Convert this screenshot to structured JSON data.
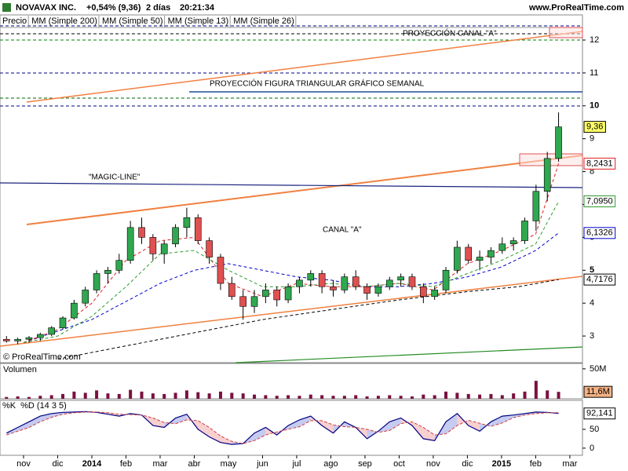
{
  "header": {
    "symbol": "NOVAVAX INC.",
    "change": "+0,54% (9,36)",
    "period": "2 días",
    "time": "20:21:34",
    "site": "www.ProRealTime.com"
  },
  "chart_data": [
    {
      "type": "candlestick",
      "xlim": [
        -0.69,
        16.37
      ],
      "ylim": [
        2.19,
        12.43
      ],
      "yticks": [
        3,
        4,
        5,
        6,
        7,
        8,
        9,
        10,
        11,
        12
      ],
      "xticks": [
        {
          "value": 0,
          "label": "nov"
        },
        {
          "value": 1,
          "label": "dic"
        },
        {
          "value": 2,
          "label": "2014"
        },
        {
          "value": 3,
          "label": "feb"
        },
        {
          "value": 4,
          "label": "mar"
        },
        {
          "value": 5,
          "label": "abr"
        },
        {
          "value": 6,
          "label": "may"
        },
        {
          "value": 7,
          "label": "jun"
        },
        {
          "value": 8,
          "label": "jul"
        },
        {
          "value": 9,
          "label": "ago"
        },
        {
          "value": 10,
          "label": "sep"
        },
        {
          "value": 11,
          "label": "oct"
        },
        {
          "value": 12,
          "label": "nov"
        },
        {
          "value": 13,
          "label": "dic"
        },
        {
          "value": 14,
          "label": "2015"
        },
        {
          "value": 15,
          "label": "feb"
        },
        {
          "value": 16,
          "label": "mar"
        }
      ],
      "series": [
        {
          "name": "Precio",
          "color": "#000000",
          "up_color": "#2fa84f",
          "down_color": "#e05050",
          "x": [
            -0.5,
            -0.17,
            0.16,
            0.49,
            0.82,
            1.15,
            1.48,
            1.81,
            2.14,
            2.47,
            2.8,
            3.13,
            3.46,
            3.79,
            4.12,
            4.45,
            4.78,
            5.11,
            5.44,
            5.77,
            6.1,
            6.43,
            6.76,
            7.09,
            7.42,
            7.75,
            8.08,
            8.41,
            8.74,
            9.07,
            9.4,
            9.73,
            10.06,
            10.39,
            10.72,
            11.05,
            11.38,
            11.71,
            12.04,
            12.37,
            12.7,
            13.03,
            13.36,
            13.69,
            14.02,
            14.35,
            14.68,
            15.01,
            15.34,
            15.67
          ],
          "open": [
            2.9,
            2.85,
            2.9,
            2.95,
            3.05,
            3.25,
            3.55,
            4.0,
            4.4,
            4.9,
            5.0,
            5.3,
            6.3,
            6.0,
            5.5,
            5.8,
            6.3,
            6.6,
            5.9,
            5.4,
            4.6,
            4.2,
            3.9,
            4.2,
            4.4,
            4.1,
            4.5,
            4.7,
            4.9,
            4.5,
            4.4,
            4.8,
            4.5,
            4.3,
            4.5,
            4.7,
            4.8,
            4.5,
            4.2,
            4.4,
            5.0,
            5.7,
            5.3,
            5.4,
            5.6,
            5.8,
            5.9,
            6.5,
            7.4,
            8.4
          ],
          "high": [
            3.0,
            2.95,
            3.0,
            3.1,
            3.3,
            3.6,
            4.1,
            4.5,
            5.0,
            5.1,
            5.5,
            6.5,
            6.6,
            6.1,
            5.9,
            6.4,
            6.9,
            6.7,
            6.0,
            5.5,
            4.8,
            4.4,
            4.4,
            4.6,
            4.5,
            4.6,
            4.8,
            5.0,
            5.0,
            4.7,
            4.9,
            5.0,
            4.6,
            4.6,
            4.8,
            4.9,
            4.9,
            4.6,
            4.5,
            5.1,
            5.9,
            5.8,
            5.6,
            5.7,
            6.0,
            6.0,
            6.6,
            7.6,
            8.6,
            9.8
          ],
          "low": [
            2.8,
            2.75,
            2.8,
            2.85,
            3.0,
            3.2,
            3.5,
            3.9,
            4.3,
            4.6,
            4.9,
            5.2,
            5.8,
            5.3,
            5.2,
            5.7,
            6.0,
            5.8,
            5.2,
            4.4,
            4.1,
            3.5,
            3.7,
            4.0,
            3.9,
            4.0,
            4.3,
            4.5,
            4.3,
            4.2,
            4.3,
            4.4,
            4.1,
            4.2,
            4.4,
            4.5,
            4.4,
            4.0,
            4.1,
            4.3,
            4.9,
            5.2,
            5.0,
            5.2,
            5.5,
            5.6,
            5.8,
            6.2,
            7.1,
            8.3
          ],
          "close": [
            2.85,
            2.9,
            2.95,
            3.05,
            3.25,
            3.55,
            4.0,
            4.4,
            4.9,
            5.0,
            5.3,
            6.3,
            6.0,
            5.5,
            5.8,
            6.3,
            6.6,
            5.9,
            5.4,
            4.6,
            4.2,
            3.9,
            4.2,
            4.4,
            4.1,
            4.5,
            4.7,
            4.9,
            4.5,
            4.4,
            4.8,
            4.5,
            4.3,
            4.5,
            4.7,
            4.8,
            4.5,
            4.2,
            4.4,
            5.0,
            5.7,
            5.3,
            5.4,
            5.6,
            5.8,
            5.9,
            6.5,
            7.4,
            8.4,
            9.36
          ]
        },
        {
          "name": "MM (Simple 200)",
          "color": "#000000",
          "x": [
            1,
            3,
            5,
            7,
            9,
            11,
            13,
            14.5,
            15.67
          ],
          "values": [
            2.3,
            2.7,
            3.1,
            3.5,
            3.8,
            4.1,
            4.35,
            4.5,
            4.7176
          ]
        },
        {
          "name": "MM (Simple 50)",
          "color": "#0000cc",
          "x": [
            0,
            2,
            4,
            5,
            6,
            7,
            8,
            9,
            10,
            11,
            12,
            13,
            14,
            15,
            15.67
          ],
          "values": [
            2.8,
            3.5,
            4.6,
            5.0,
            5.2,
            5.0,
            4.8,
            4.7,
            4.5,
            4.5,
            4.6,
            4.8,
            5.1,
            5.6,
            6.1326
          ]
        },
        {
          "name": "MM (Simple 13)",
          "color": "#dd2222",
          "x": [
            0,
            1,
            2,
            3,
            4,
            5,
            6,
            7,
            8,
            9,
            10,
            11,
            12,
            13,
            14,
            15,
            15.67
          ],
          "values": [
            2.8,
            3.2,
            4.0,
            5.3,
            5.9,
            6.0,
            4.6,
            4.2,
            4.6,
            4.5,
            4.5,
            4.6,
            4.4,
            5.2,
            5.6,
            6.1,
            8.2431
          ]
        },
        {
          "name": "MM (Simple 26)",
          "color": "#2e9c2e",
          "x": [
            0,
            1,
            2,
            3,
            4,
            5,
            6,
            7,
            8,
            9,
            10,
            11,
            12,
            13,
            14,
            15,
            15.67
          ],
          "values": [
            2.8,
            3.0,
            3.6,
            4.5,
            5.5,
            5.6,
            5.0,
            4.5,
            4.5,
            4.6,
            4.5,
            4.6,
            4.5,
            4.9,
            5.3,
            5.8,
            7.095
          ]
        }
      ],
      "last_value_labels": [
        {
          "value": 9.36,
          "label": "9,36",
          "color": "#000000",
          "background": "#ffff66"
        },
        {
          "value": 8.2431,
          "label": "8,2431",
          "color": "#dd2222",
          "background": "#ffffff"
        },
        {
          "value": 7.095,
          "label": "7,0950",
          "color": "#2e9c2e",
          "background": "#ffffff"
        },
        {
          "value": 6.1326,
          "label": "6,1326",
          "color": "#0000cc",
          "background": "#ffffff"
        },
        {
          "value": 4.7176,
          "label": "4,7176",
          "color": "#000000",
          "background": "#ffffff"
        }
      ],
      "annotations": [
        {
          "text": "PROYECCIÓN CANAL \"A\""
        },
        {
          "text": "PROYECCIÓN FIGURA TRIANGULAR GRÁFICO SEMANAL"
        },
        {
          "text": "\"MAGIC-LINE\""
        },
        {
          "text": "CANAL \"A\""
        }
      ],
      "copyright": "© ProRealTime.com"
    },
    {
      "type": "bar",
      "title": "Volumen",
      "color": "#7a1040",
      "ylim": [
        0,
        59
      ],
      "yticks": [
        {
          "value": 50,
          "label": "50M"
        }
      ],
      "values": [
        3,
        4,
        3,
        5,
        6,
        8,
        12,
        10,
        14,
        9,
        8,
        15,
        12,
        9,
        8,
        10,
        14,
        11,
        9,
        12,
        10,
        9,
        7,
        6,
        5,
        6,
        5,
        7,
        6,
        5,
        5,
        6,
        4,
        5,
        6,
        5,
        4,
        7,
        6,
        12,
        10,
        8,
        7,
        8,
        6,
        9,
        12,
        30,
        14,
        11.6
      ],
      "last_value_label": {
        "value": 11.6,
        "label": "11,6M",
        "color": "#000000",
        "background": "#f4b183"
      }
    },
    {
      "type": "line",
      "ylim": [
        -19,
        127
      ],
      "yticks": [
        0,
        50
      ],
      "series": [
        {
          "name": "%K",
          "color": "#000080",
          "values": [
            40,
            55,
            70,
            85,
            92,
            95,
            96,
            97,
            95,
            90,
            85,
            92,
            88,
            60,
            55,
            80,
            90,
            50,
            30,
            15,
            10,
            12,
            40,
            55,
            35,
            60,
            75,
            85,
            60,
            40,
            70,
            55,
            25,
            45,
            70,
            80,
            60,
            25,
            20,
            70,
            92,
            60,
            45,
            70,
            85,
            88,
            92,
            96,
            95,
            92.141
          ]
        },
        {
          "name": "%D (14 3 5)",
          "color": "#d04040",
          "values": [
            35,
            45,
            55,
            70,
            82,
            90,
            94,
            96,
            96,
            94,
            90,
            89,
            88,
            80,
            68,
            65,
            75,
            73,
            55,
            32,
            18,
            12,
            20,
            35,
            43,
            50,
            57,
            73,
            73,
            62,
            57,
            55,
            50,
            42,
            47,
            65,
            70,
            55,
            35,
            38,
            60,
            74,
            66,
            58,
            67,
            81,
            88,
            92,
            94,
            94
          ]
        }
      ],
      "last_value_label": {
        "value": 92.141,
        "label": "92,141",
        "color": "#000000",
        "background": "#ffffff"
      }
    }
  ]
}
